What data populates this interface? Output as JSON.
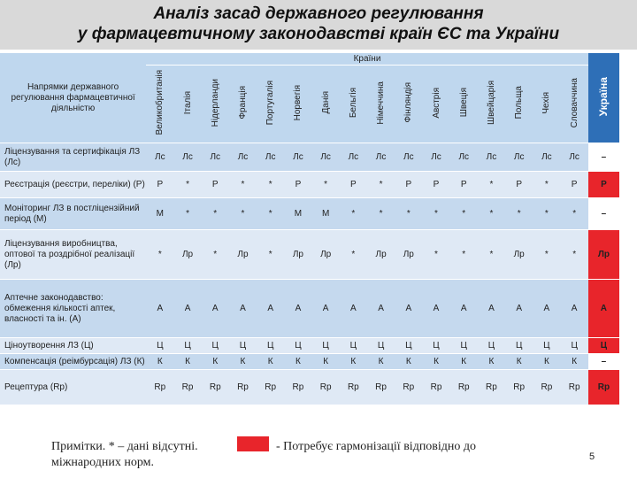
{
  "title": {
    "line1": "Аналіз засад державного регулювання",
    "line2": "у фармацевтичному законодавстві країн ЄС та України"
  },
  "header": {
    "directions_label": "Напрямки державного регулювання фармацевтичної діяльністю",
    "countries_label": "Країни",
    "countries": [
      "Великобританія",
      "Італія",
      "Нідерланди",
      "Франція",
      "Португалія",
      "Норвегія",
      "Данія",
      "Бельгія",
      "Німеччина",
      "Фінляндія",
      "Австрія",
      "Швеція",
      "Швейцарія",
      "Польща",
      "Чехія",
      "Словаччина"
    ],
    "ukraine": "Україна"
  },
  "rows": [
    {
      "label": "Ліцензування та сертифікація ЛЗ (Лс)",
      "cells": [
        "Лс",
        "Лс",
        "Лс",
        "Лс",
        "Лс",
        "Лс",
        "Лс",
        "Лс",
        "Лс",
        "Лс",
        "Лс",
        "Лс",
        "Лс",
        "Лс",
        "Лс",
        "Лс"
      ],
      "ukraine": "–",
      "ukraine_red": false
    },
    {
      "label": "Реєстрація (реєстри, переліки) (Р)",
      "cells": [
        "Р",
        "*",
        "Р",
        "*",
        "*",
        "Р",
        "*",
        "Р",
        "*",
        "Р",
        "Р",
        "Р",
        "*",
        "Р",
        "*",
        "Р"
      ],
      "ukraine": "Р",
      "ukraine_red": true
    },
    {
      "label": "Моніторинг ЛЗ в постліцензійний період (М)",
      "cells": [
        "М",
        "*",
        "*",
        "*",
        "*",
        "М",
        "М",
        "*",
        "*",
        "*",
        "*",
        "*",
        "*",
        "*",
        "*",
        "*"
      ],
      "ukraine": "–",
      "ukraine_red": false
    },
    {
      "label": "Ліцензування виробництва, оптової та роздрібної реалізації (Лр)",
      "cells": [
        "*",
        "Лр",
        "*",
        "Лр",
        "*",
        "Лр",
        "Лр",
        "*",
        "Лр",
        "Лр",
        "*",
        "*",
        "*",
        "Лр",
        "*",
        "*"
      ],
      "ukraine": "Лр",
      "ukraine_red": true
    },
    {
      "label": "Аптечне законодавство: обмеження кількості аптек, власності та ін. (А)",
      "cells": [
        "А",
        "А",
        "А",
        "А",
        "А",
        "А",
        "А",
        "А",
        "А",
        "А",
        "А",
        "А",
        "А",
        "А",
        "А",
        "А"
      ],
      "ukraine": "А",
      "ukraine_red": true
    },
    {
      "label": "Ціноутворення ЛЗ (Ц)",
      "cells": [
        "Ц",
        "Ц",
        "Ц",
        "Ц",
        "Ц",
        "Ц",
        "Ц",
        "Ц",
        "Ц",
        "Ц",
        "Ц",
        "Ц",
        "Ц",
        "Ц",
        "Ц",
        "Ц"
      ],
      "ukraine": "Ц",
      "ukraine_red": true
    },
    {
      "label": "Компенсація (реімбурсація) ЛЗ (К)",
      "cells": [
        "К",
        "К",
        "К",
        "К",
        "К",
        "К",
        "К",
        "К",
        "К",
        "К",
        "К",
        "К",
        "К",
        "К",
        "К",
        "К"
      ],
      "ukraine": "–",
      "ukraine_red": false
    },
    {
      "label": "Рецептура (Rр)",
      "cells": [
        "Rр",
        "Rр",
        "Rр",
        "Rр",
        "Rр",
        "Rр",
        "Rр",
        "Rр",
        "Rр",
        "Rр",
        "Rр",
        "Rр",
        "Rр",
        "Rр",
        "Rр",
        "Rр"
      ],
      "ukraine": "Rр",
      "ukraine_red": true
    }
  ],
  "note": {
    "left": "Примітки. * – дані відсутні.",
    "left2": "міжнародних норм.",
    "right": "- Потребує гармонізації відповідно до"
  },
  "page_number": "5",
  "colors": {
    "header_blue": "#bfd7ee",
    "ukraine_head": "#2e6fb7",
    "harmonize_red": "#e8252b",
    "row_a": "#c5d9ee",
    "row_b": "#dfe9f5"
  }
}
